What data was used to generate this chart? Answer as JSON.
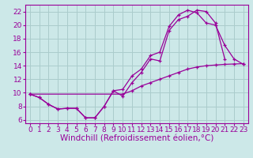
{
  "background_color": "#cce8e8",
  "grid_color": "#aacccc",
  "line_color": "#990099",
  "xlabel": "Windchill (Refroidissement éolien,°C)",
  "xlabel_fontsize": 7.5,
  "tick_fontsize": 6.5,
  "xlim": [
    -0.5,
    23.5
  ],
  "ylim": [
    5.5,
    23
  ],
  "xticks": [
    0,
    1,
    2,
    3,
    4,
    5,
    6,
    7,
    8,
    9,
    10,
    11,
    12,
    13,
    14,
    15,
    16,
    17,
    18,
    19,
    20,
    21,
    22,
    23
  ],
  "yticks": [
    6,
    8,
    10,
    12,
    14,
    16,
    18,
    20,
    22
  ],
  "c1x": [
    0,
    1,
    2,
    3,
    4,
    5,
    6,
    7,
    8,
    9,
    10,
    11,
    12,
    13,
    14,
    15,
    16,
    17,
    18,
    19,
    20,
    21
  ],
  "c1y": [
    9.8,
    9.3,
    8.3,
    7.6,
    7.7,
    7.7,
    6.3,
    6.3,
    8.0,
    10.3,
    9.5,
    11.5,
    13.0,
    15.0,
    14.7,
    19.2,
    20.8,
    21.3,
    22.2,
    22.0,
    20.3,
    15.0
  ],
  "c2x": [
    0,
    1,
    2,
    3,
    4,
    5,
    6,
    7,
    8,
    9,
    10,
    11,
    12,
    13,
    14,
    15,
    16,
    17,
    18,
    19,
    20,
    21,
    22,
    23
  ],
  "c2y": [
    9.8,
    9.3,
    8.3,
    7.6,
    7.7,
    7.7,
    6.3,
    6.3,
    8.0,
    10.3,
    10.5,
    12.5,
    13.5,
    15.5,
    16.0,
    19.8,
    21.5,
    22.2,
    21.8,
    20.3,
    20.0,
    17.0,
    15.0,
    14.2
  ],
  "c3x": [
    0,
    10,
    11,
    12,
    13,
    14,
    15,
    16,
    17,
    18,
    19,
    20,
    21,
    22,
    23
  ],
  "c3y": [
    9.8,
    9.8,
    10.3,
    11.0,
    11.5,
    12.0,
    12.5,
    13.0,
    13.5,
    13.8,
    14.0,
    14.1,
    14.2,
    14.25,
    14.3
  ]
}
